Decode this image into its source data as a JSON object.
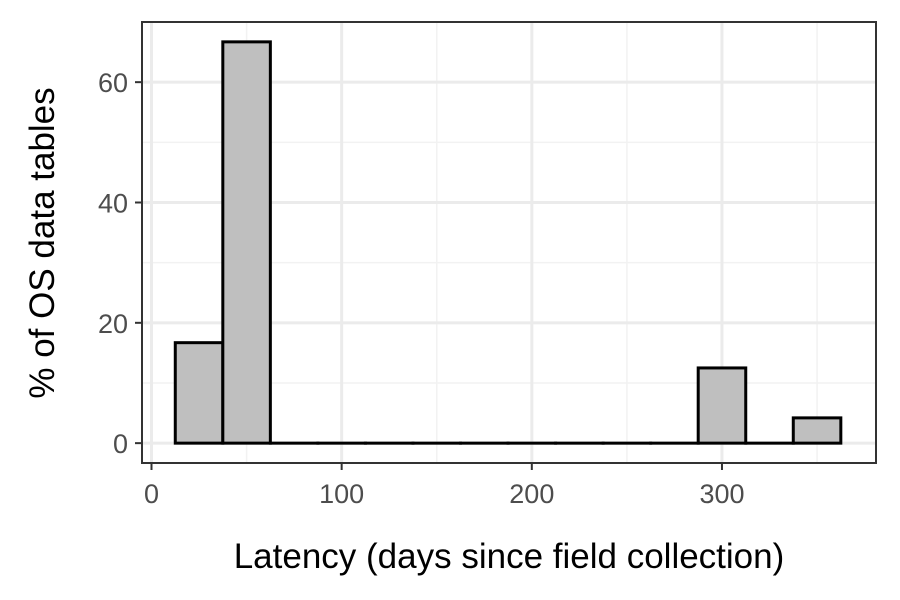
{
  "chart_data": {
    "type": "bar",
    "subtype": "histogram",
    "xlabel": "Latency (days since field collection)",
    "ylabel": "% of OS data tables",
    "xlim": [
      -5,
      381
    ],
    "ylim": [
      -3.3,
      70
    ],
    "x_ticks": [
      0,
      100,
      200,
      300
    ],
    "y_ticks": [
      0,
      20,
      40,
      60
    ],
    "x_tick_labels": [
      "0",
      "100",
      "200",
      "300"
    ],
    "y_tick_labels": [
      "0",
      "20",
      "40",
      "60"
    ],
    "bin_width": 25,
    "bins": [
      {
        "x0": 12.5,
        "x1": 37.5,
        "value": 16.7
      },
      {
        "x0": 37.5,
        "x1": 62.5,
        "value": 66.7
      },
      {
        "x0": 62.5,
        "x1": 87.5,
        "value": 0
      },
      {
        "x0": 87.5,
        "x1": 112.5,
        "value": 0
      },
      {
        "x0": 112.5,
        "x1": 137.5,
        "value": 0
      },
      {
        "x0": 137.5,
        "x1": 162.5,
        "value": 0
      },
      {
        "x0": 162.5,
        "x1": 187.5,
        "value": 0
      },
      {
        "x0": 187.5,
        "x1": 212.5,
        "value": 0
      },
      {
        "x0": 212.5,
        "x1": 237.5,
        "value": 0
      },
      {
        "x0": 237.5,
        "x1": 262.5,
        "value": 0
      },
      {
        "x0": 262.5,
        "x1": 287.5,
        "value": 0
      },
      {
        "x0": 287.5,
        "x1": 312.5,
        "value": 12.5
      },
      {
        "x0": 312.5,
        "x1": 337.5,
        "value": 0
      },
      {
        "x0": 337.5,
        "x1": 362.5,
        "value": 4.2
      }
    ],
    "grid": true,
    "theme": "bw",
    "colors": {
      "bar_fill": "#bfbfbf",
      "bar_stroke": "#000000",
      "grid_major": "#ebebeb",
      "grid_minor": "#f2f2f2",
      "panel_border": "#333333",
      "tick_text": "#4d4d4d"
    }
  }
}
